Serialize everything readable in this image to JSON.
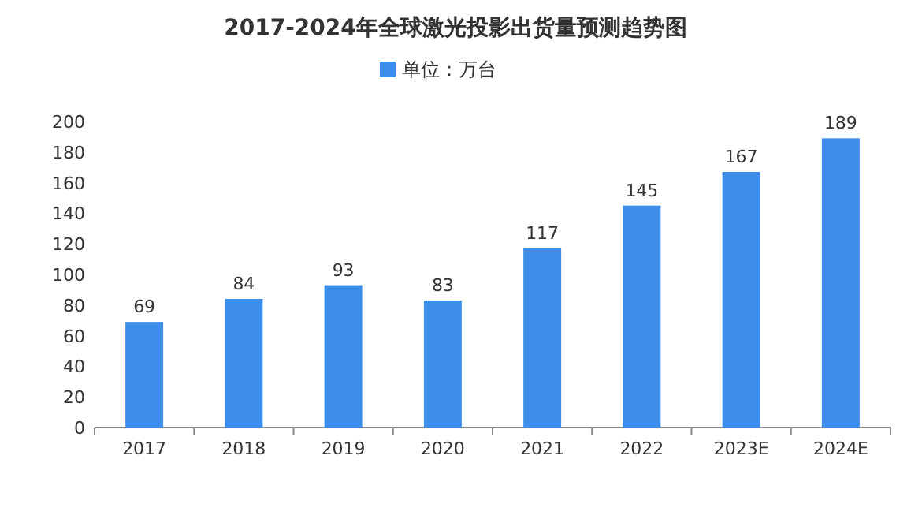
{
  "chart_data": {
    "type": "bar",
    "title": "2017-2024年全球激光投影出货量预测趋势图",
    "categories": [
      "2017",
      "2018",
      "2019",
      "2020",
      "2021",
      "2022",
      "2023E",
      "2024E"
    ],
    "series": [
      {
        "name": "单位：万台",
        "color": "#3d8ee8",
        "values": [
          69,
          84,
          93,
          83,
          117,
          145,
          167,
          189
        ]
      }
    ],
    "ylim": [
      0,
      200
    ],
    "yticks": [
      0,
      20,
      40,
      60,
      80,
      100,
      120,
      140,
      160,
      180,
      200
    ],
    "data_labels": true,
    "legend": "top",
    "grid": false
  }
}
